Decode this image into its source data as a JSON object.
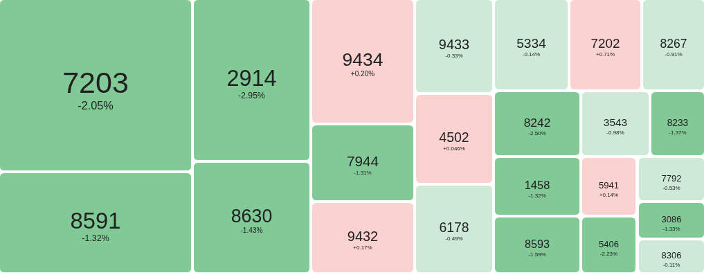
{
  "chart_data": {
    "type": "other",
    "categories": [
      "7203",
      "8591",
      "2914",
      "8630",
      "9434",
      "7944",
      "9432",
      "9433",
      "5334",
      "7202",
      "8267",
      "4502",
      "6178",
      "8242",
      "1458",
      "8593",
      "3543",
      "8233",
      "5941",
      "7792",
      "3086",
      "5406",
      "8306"
    ],
    "values": [
      -2.05,
      -1.32,
      -2.95,
      -1.43,
      0.2,
      -1.31,
      0.17,
      -0.33,
      -0.14,
      0.71,
      -0.91,
      0.046,
      -0.49,
      -2.5,
      -1.32,
      -1.59,
      -0.98,
      -1.37,
      0.14,
      -0.53,
      -1.33,
      -2.23,
      -0.11
    ],
    "value_labels": [
      "-2.05%",
      "-1.32%",
      "-2.95%",
      "-1.43%",
      "+0.20%",
      "-1.31%",
      "+0.17%",
      "-0.33%",
      "-0.14%",
      "+0.71%",
      "-0.91%",
      "+0.046%",
      "-0.49%",
      "-2.50%",
      "-1.32%",
      "-1.59%",
      "-0.98%",
      "-1.37%",
      "+0.14%",
      "-0.53%",
      "-1.33%",
      "-2.23%",
      "-0.11%"
    ]
  }
}
